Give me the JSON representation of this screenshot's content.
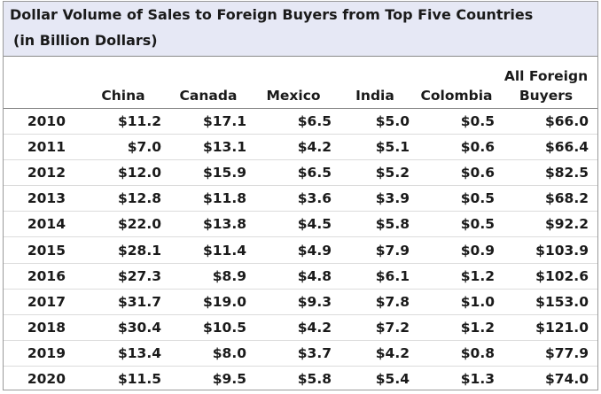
{
  "chart_data": {
    "type": "table",
    "title": "Dollar Volume of Sales to Foreign Buyers from Top Five Countries",
    "subtitle": "(in Billion Dollars)",
    "columns": [
      "",
      "China",
      "Canada",
      "Mexico",
      "India",
      "Colombia",
      "All Foreign Buyers"
    ],
    "column_header_lines": {
      "all_foreign_line1": "All Foreign",
      "all_foreign_line2": "Buyers"
    },
    "rows": [
      [
        "2010",
        "$11.2",
        "$17.1",
        "$6.5",
        "$5.0",
        "$0.5",
        "$66.0"
      ],
      [
        "2011",
        "$7.0",
        "$13.1",
        "$4.2",
        "$5.1",
        "$0.6",
        "$66.4"
      ],
      [
        "2012",
        "$12.0",
        "$15.9",
        "$6.5",
        "$5.2",
        "$0.6",
        "$82.5"
      ],
      [
        "2013",
        "$12.8",
        "$11.8",
        "$3.6",
        "$3.9",
        "$0.5",
        "$68.2"
      ],
      [
        "2014",
        "$22.0",
        "$13.8",
        "$4.5",
        "$5.8",
        "$0.5",
        "$92.2"
      ],
      [
        "2015",
        "$28.1",
        "$11.4",
        "$4.9",
        "$7.9",
        "$0.9",
        "$103.9"
      ],
      [
        "2016",
        "$27.3",
        "$8.9",
        "$4.8",
        "$6.1",
        "$1.2",
        "$102.6"
      ],
      [
        "2017",
        "$31.7",
        "$19.0",
        "$9.3",
        "$7.8",
        "$1.0",
        "$153.0"
      ],
      [
        "2018",
        "$30.4",
        "$10.5",
        "$4.2",
        "$7.2",
        "$1.2",
        "$121.0"
      ],
      [
        "2019",
        "$13.4",
        "$8.0",
        "$3.7",
        "$4.2",
        "$0.8",
        "$77.9"
      ],
      [
        "2020",
        "$11.5",
        "$9.5",
        "$5.8",
        "$5.4",
        "$1.3",
        "$74.0"
      ]
    ]
  },
  "colors": {
    "title_band": "#e6e8f5",
    "text": "#1a1a1a",
    "rule": "#8a8a8a"
  }
}
